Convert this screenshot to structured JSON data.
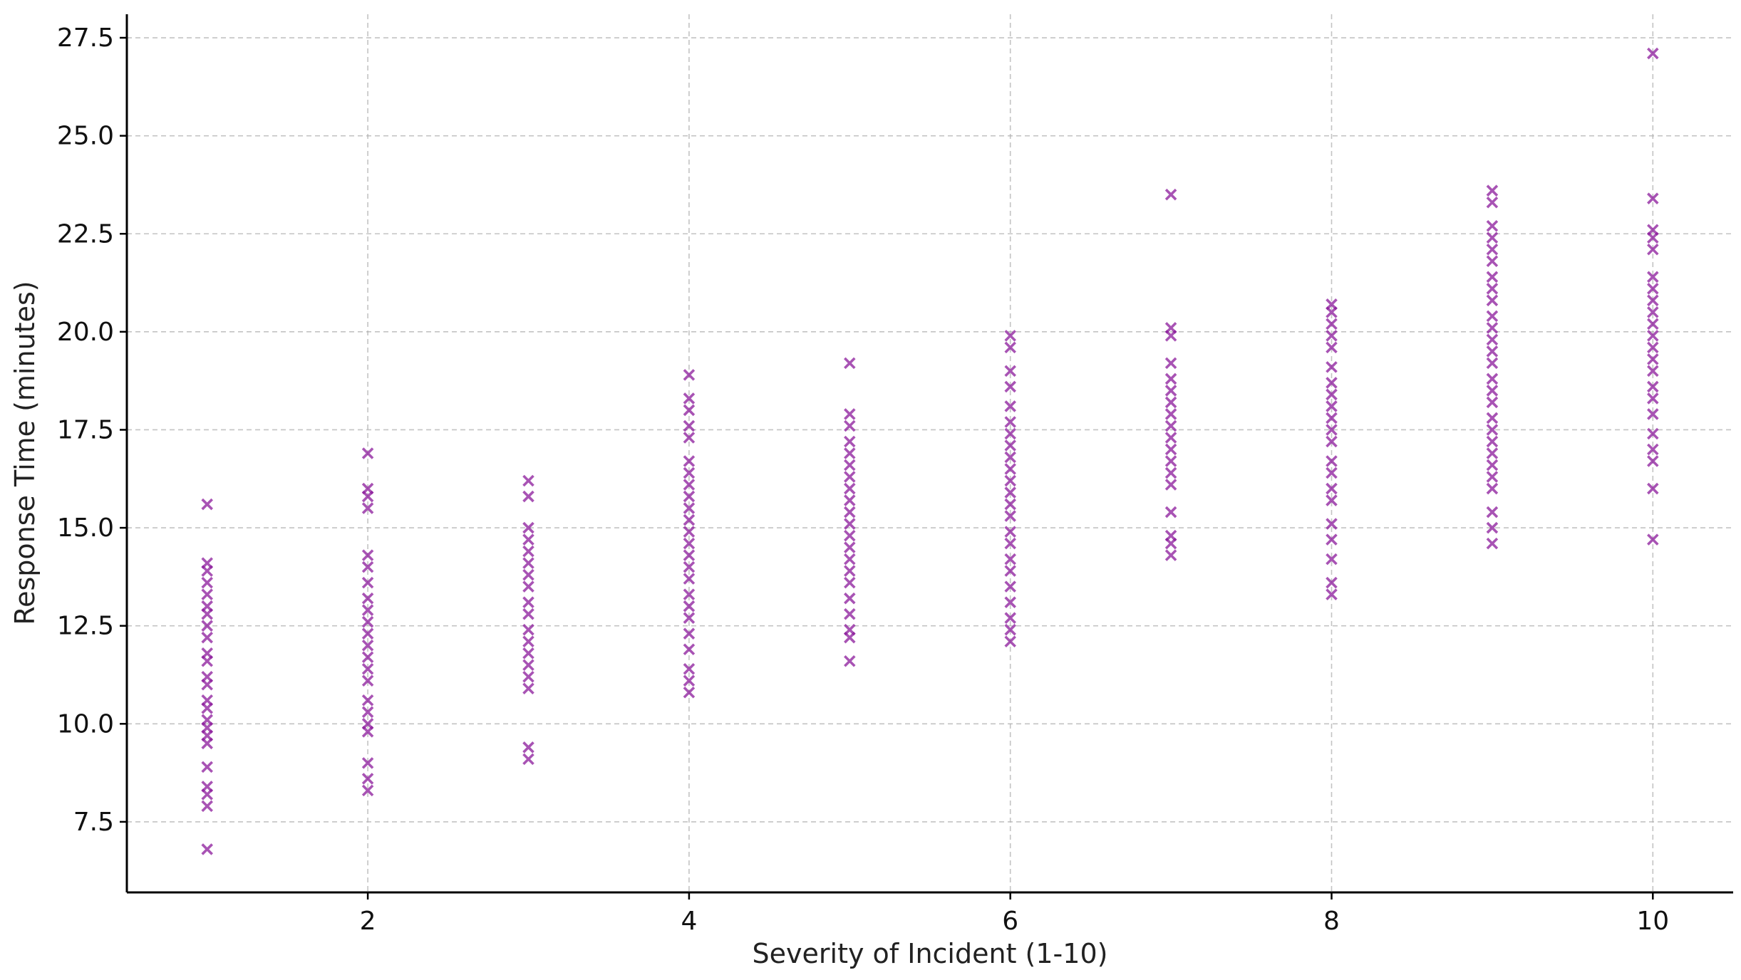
{
  "chart_data": {
    "type": "scatter",
    "title": "",
    "xlabel": "Severity of Incident (1-10)",
    "ylabel": "Response Time (minutes)",
    "xlim": [
      0.5,
      10.5
    ],
    "ylim": [
      5.7,
      28.1
    ],
    "xticks": [
      2,
      4,
      6,
      8,
      10
    ],
    "xtick_labels": [
      "2",
      "4",
      "6",
      "8",
      "10"
    ],
    "yticks": [
      7.5,
      10.0,
      12.5,
      15.0,
      17.5,
      20.0,
      22.5,
      25.0,
      27.5
    ],
    "ytick_labels": [
      "7.5",
      "10.0",
      "12.5",
      "15.0",
      "17.5",
      "20.0",
      "22.5",
      "25.0",
      "27.5"
    ],
    "grid": true,
    "marker": "x",
    "color": "#8b1a9b",
    "series": [
      {
        "name": "Response Time",
        "points": [
          [
            1,
            6.8
          ],
          [
            1,
            7.9
          ],
          [
            1,
            8.2
          ],
          [
            1,
            8.4
          ],
          [
            1,
            8.9
          ],
          [
            1,
            9.5
          ],
          [
            1,
            9.7
          ],
          [
            1,
            9.9
          ],
          [
            1,
            10.1
          ],
          [
            1,
            10.4
          ],
          [
            1,
            10.6
          ],
          [
            1,
            11.0
          ],
          [
            1,
            11.2
          ],
          [
            1,
            11.6
          ],
          [
            1,
            11.8
          ],
          [
            1,
            12.2
          ],
          [
            1,
            12.5
          ],
          [
            1,
            12.8
          ],
          [
            1,
            13.0
          ],
          [
            1,
            13.3
          ],
          [
            1,
            13.6
          ],
          [
            1,
            13.9
          ],
          [
            1,
            14.1
          ],
          [
            1,
            15.6
          ],
          [
            2,
            8.3
          ],
          [
            2,
            8.6
          ],
          [
            2,
            9.0
          ],
          [
            2,
            9.8
          ],
          [
            2,
            10.0
          ],
          [
            2,
            10.3
          ],
          [
            2,
            10.6
          ],
          [
            2,
            11.1
          ],
          [
            2,
            11.4
          ],
          [
            2,
            11.7
          ],
          [
            2,
            12.0
          ],
          [
            2,
            12.3
          ],
          [
            2,
            12.6
          ],
          [
            2,
            12.9
          ],
          [
            2,
            13.2
          ],
          [
            2,
            13.6
          ],
          [
            2,
            14.0
          ],
          [
            2,
            14.3
          ],
          [
            2,
            15.5
          ],
          [
            2,
            15.8
          ],
          [
            2,
            16.0
          ],
          [
            2,
            16.9
          ],
          [
            3,
            9.1
          ],
          [
            3,
            9.4
          ],
          [
            3,
            10.9
          ],
          [
            3,
            11.2
          ],
          [
            3,
            11.5
          ],
          [
            3,
            11.8
          ],
          [
            3,
            12.1
          ],
          [
            3,
            12.4
          ],
          [
            3,
            12.8
          ],
          [
            3,
            13.1
          ],
          [
            3,
            13.5
          ],
          [
            3,
            13.8
          ],
          [
            3,
            14.1
          ],
          [
            3,
            14.4
          ],
          [
            3,
            14.7
          ],
          [
            3,
            15.0
          ],
          [
            3,
            15.8
          ],
          [
            3,
            16.2
          ],
          [
            4,
            10.8
          ],
          [
            4,
            11.1
          ],
          [
            4,
            11.4
          ],
          [
            4,
            11.9
          ],
          [
            4,
            12.3
          ],
          [
            4,
            12.7
          ],
          [
            4,
            13.0
          ],
          [
            4,
            13.3
          ],
          [
            4,
            13.7
          ],
          [
            4,
            14.0
          ],
          [
            4,
            14.3
          ],
          [
            4,
            14.6
          ],
          [
            4,
            14.9
          ],
          [
            4,
            15.2
          ],
          [
            4,
            15.5
          ],
          [
            4,
            15.8
          ],
          [
            4,
            16.1
          ],
          [
            4,
            16.4
          ],
          [
            4,
            16.7
          ],
          [
            4,
            17.3
          ],
          [
            4,
            17.6
          ],
          [
            4,
            18.0
          ],
          [
            4,
            18.3
          ],
          [
            4,
            18.9
          ],
          [
            5,
            11.6
          ],
          [
            5,
            12.2
          ],
          [
            5,
            12.4
          ],
          [
            5,
            12.8
          ],
          [
            5,
            13.2
          ],
          [
            5,
            13.6
          ],
          [
            5,
            13.9
          ],
          [
            5,
            14.2
          ],
          [
            5,
            14.5
          ],
          [
            5,
            14.8
          ],
          [
            5,
            15.1
          ],
          [
            5,
            15.4
          ],
          [
            5,
            15.7
          ],
          [
            5,
            16.0
          ],
          [
            5,
            16.3
          ],
          [
            5,
            16.6
          ],
          [
            5,
            16.9
          ],
          [
            5,
            17.2
          ],
          [
            5,
            17.6
          ],
          [
            5,
            17.9
          ],
          [
            5,
            19.2
          ],
          [
            6,
            12.1
          ],
          [
            6,
            12.4
          ],
          [
            6,
            12.7
          ],
          [
            6,
            13.1
          ],
          [
            6,
            13.5
          ],
          [
            6,
            13.9
          ],
          [
            6,
            14.2
          ],
          [
            6,
            14.6
          ],
          [
            6,
            14.9
          ],
          [
            6,
            15.3
          ],
          [
            6,
            15.6
          ],
          [
            6,
            15.9
          ],
          [
            6,
            16.2
          ],
          [
            6,
            16.5
          ],
          [
            6,
            16.8
          ],
          [
            6,
            17.1
          ],
          [
            6,
            17.4
          ],
          [
            6,
            17.7
          ],
          [
            6,
            18.1
          ],
          [
            6,
            18.6
          ],
          [
            6,
            19.0
          ],
          [
            6,
            19.6
          ],
          [
            6,
            19.9
          ],
          [
            7,
            14.3
          ],
          [
            7,
            14.6
          ],
          [
            7,
            14.8
          ],
          [
            7,
            15.4
          ],
          [
            7,
            16.1
          ],
          [
            7,
            16.4
          ],
          [
            7,
            16.7
          ],
          [
            7,
            17.0
          ],
          [
            7,
            17.3
          ],
          [
            7,
            17.6
          ],
          [
            7,
            17.9
          ],
          [
            7,
            18.2
          ],
          [
            7,
            18.5
          ],
          [
            7,
            18.8
          ],
          [
            7,
            19.2
          ],
          [
            7,
            19.9
          ],
          [
            7,
            20.1
          ],
          [
            7,
            23.5
          ],
          [
            8,
            13.3
          ],
          [
            8,
            13.6
          ],
          [
            8,
            14.2
          ],
          [
            8,
            14.7
          ],
          [
            8,
            15.1
          ],
          [
            8,
            15.7
          ],
          [
            8,
            16.0
          ],
          [
            8,
            16.4
          ],
          [
            8,
            16.7
          ],
          [
            8,
            17.2
          ],
          [
            8,
            17.5
          ],
          [
            8,
            17.8
          ],
          [
            8,
            18.1
          ],
          [
            8,
            18.4
          ],
          [
            8,
            18.7
          ],
          [
            8,
            19.1
          ],
          [
            8,
            19.6
          ],
          [
            8,
            19.9
          ],
          [
            8,
            20.2
          ],
          [
            8,
            20.5
          ],
          [
            8,
            20.7
          ],
          [
            9,
            14.6
          ],
          [
            9,
            15.0
          ],
          [
            9,
            15.4
          ],
          [
            9,
            16.0
          ],
          [
            9,
            16.3
          ],
          [
            9,
            16.6
          ],
          [
            9,
            16.9
          ],
          [
            9,
            17.2
          ],
          [
            9,
            17.5
          ],
          [
            9,
            17.8
          ],
          [
            9,
            18.2
          ],
          [
            9,
            18.5
          ],
          [
            9,
            18.8
          ],
          [
            9,
            19.2
          ],
          [
            9,
            19.5
          ],
          [
            9,
            19.8
          ],
          [
            9,
            20.1
          ],
          [
            9,
            20.4
          ],
          [
            9,
            20.8
          ],
          [
            9,
            21.1
          ],
          [
            9,
            21.4
          ],
          [
            9,
            21.8
          ],
          [
            9,
            22.1
          ],
          [
            9,
            22.4
          ],
          [
            9,
            22.7
          ],
          [
            9,
            23.3
          ],
          [
            9,
            23.6
          ],
          [
            10,
            14.7
          ],
          [
            10,
            16.0
          ],
          [
            10,
            16.7
          ],
          [
            10,
            17.0
          ],
          [
            10,
            17.4
          ],
          [
            10,
            17.9
          ],
          [
            10,
            18.3
          ],
          [
            10,
            18.6
          ],
          [
            10,
            19.0
          ],
          [
            10,
            19.3
          ],
          [
            10,
            19.6
          ],
          [
            10,
            19.9
          ],
          [
            10,
            20.2
          ],
          [
            10,
            20.5
          ],
          [
            10,
            20.8
          ],
          [
            10,
            21.1
          ],
          [
            10,
            21.4
          ],
          [
            10,
            22.1
          ],
          [
            10,
            22.4
          ],
          [
            10,
            22.6
          ],
          [
            10,
            23.4
          ],
          [
            10,
            27.1
          ]
        ]
      }
    ]
  }
}
